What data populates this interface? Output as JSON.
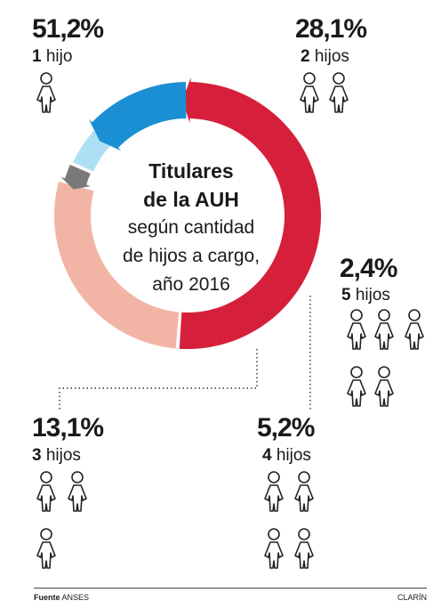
{
  "chart_data": {
    "type": "pie",
    "title_line1": "Titulares",
    "title_line2": "de la AUH",
    "subtitle_lines": [
      "según cantidad",
      "de hijos a cargo,",
      "año 2016"
    ],
    "slices": [
      {
        "label": "1 hijo",
        "count": "1",
        "unit": "hijo",
        "value": 51.2,
        "value_text": "51,2%",
        "color": "#d6203b"
      },
      {
        "label": "2 hijos",
        "count": "2",
        "unit": "hijos",
        "value": 28.1,
        "value_text": "28,1%",
        "color": "#f2b5a5"
      },
      {
        "label": "5 hijos",
        "count": "5",
        "unit": "hijos",
        "value": 2.4,
        "value_text": "2,4%",
        "color": "#7a7a7a"
      },
      {
        "label": "4 hijos",
        "count": "4",
        "unit": "hijos",
        "value": 5.2,
        "value_text": "5,2%",
        "color": "#aee0f4"
      },
      {
        "label": "3 hijos",
        "count": "3",
        "unit": "hijos",
        "value": 13.1,
        "value_text": "13,1%",
        "color": "#1b8fd4"
      }
    ],
    "icon": "child-figure-icon"
  },
  "footer": {
    "source_label": "Fuente",
    "source_value": "ANSES",
    "brand": "CLARÍN"
  }
}
